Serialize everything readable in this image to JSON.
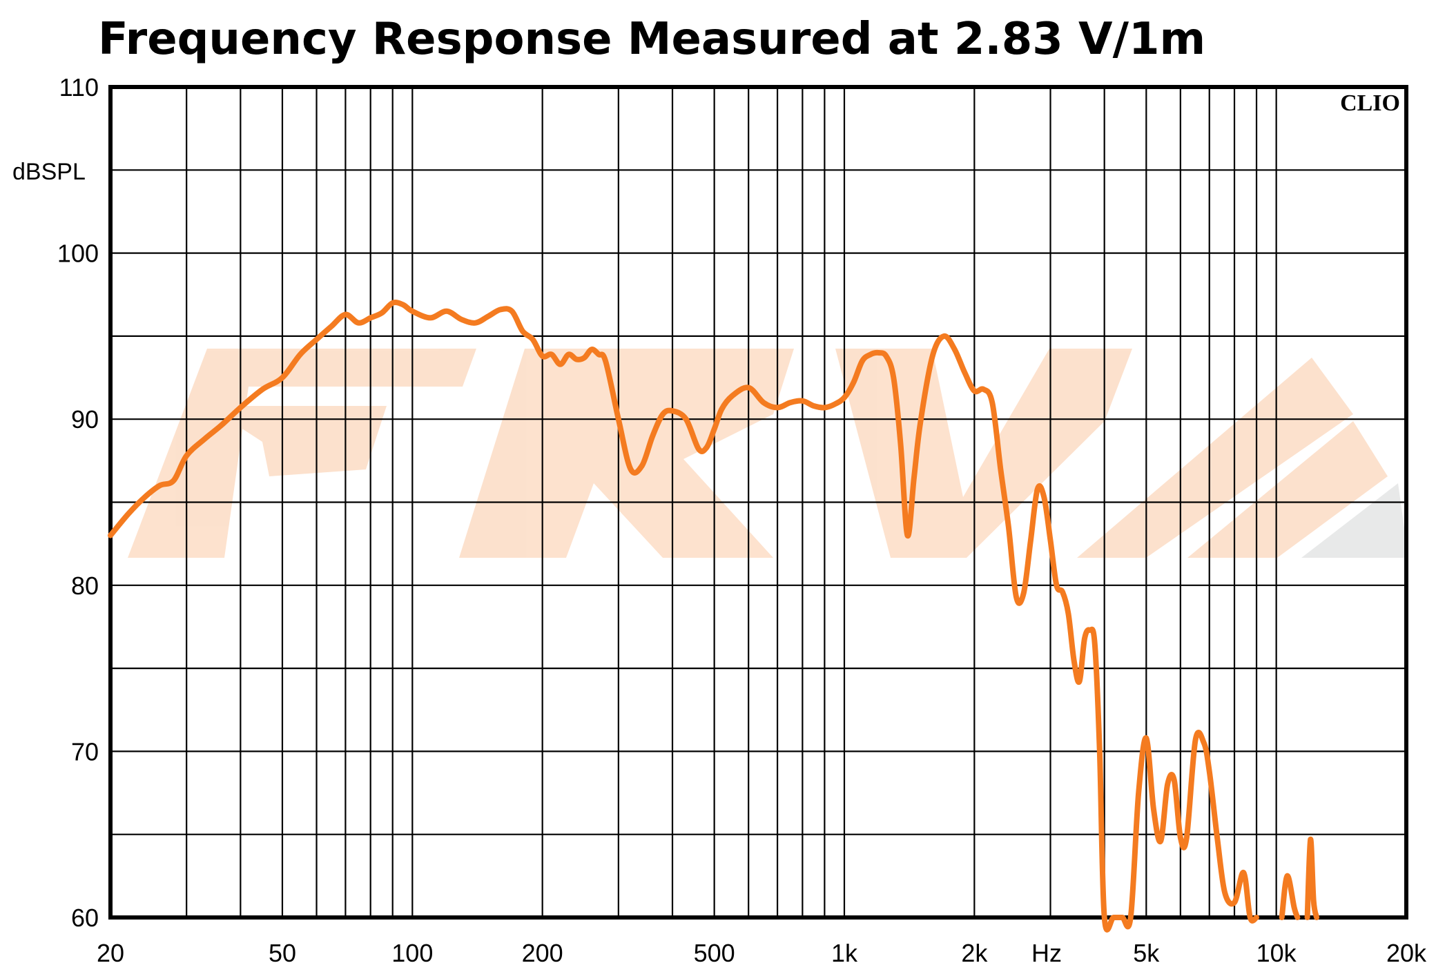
{
  "chart_data": {
    "type": "line",
    "title": "Frequency Response Measured at 2.83 V/1m",
    "xlabel": "Hz",
    "ylabel": "dBSPL",
    "brand": "CLIO",
    "x_scale": "log",
    "xlim": [
      20,
      20000
    ],
    "ylim": [
      60,
      110
    ],
    "grid": true,
    "curve_color": "#F47B20",
    "x_ticks": [
      {
        "value": 20,
        "label": "20"
      },
      {
        "value": 50,
        "label": "50"
      },
      {
        "value": 100,
        "label": "100"
      },
      {
        "value": 200,
        "label": "200"
      },
      {
        "value": 500,
        "label": "500"
      },
      {
        "value": 1000,
        "label": "1k"
      },
      {
        "value": 2000,
        "label": "2k"
      },
      {
        "value": 5000,
        "label": "5k"
      },
      {
        "value": 10000,
        "label": "10k"
      },
      {
        "value": 20000,
        "label": "20k"
      }
    ],
    "y_ticks": [
      {
        "value": 60,
        "label": "60"
      },
      {
        "value": 70,
        "label": "70"
      },
      {
        "value": 80,
        "label": "80"
      },
      {
        "value": 90,
        "label": "90"
      },
      {
        "value": 100,
        "label": "100"
      },
      {
        "value": 110,
        "label": "110"
      }
    ],
    "series": [
      {
        "x": [
          20,
          22,
          24,
          26,
          28,
          30,
          33,
          36,
          40,
          45,
          50,
          55,
          60,
          65,
          70,
          75,
          80,
          85,
          90,
          95,
          100,
          110,
          120,
          130,
          140,
          150,
          160,
          170,
          180,
          190,
          200,
          210,
          220,
          230,
          240,
          250,
          260,
          270,
          280,
          300,
          320,
          340,
          360,
          380,
          400,
          430,
          460,
          480,
          500,
          520,
          550,
          600,
          650,
          700,
          750,
          800,
          850,
          900,
          950,
          1000,
          1050,
          1100,
          1150,
          1200,
          1250,
          1300,
          1350,
          1400,
          1450,
          1500,
          1600,
          1700,
          1800,
          1900,
          2000,
          2100,
          2200,
          2300,
          2400,
          2500,
          2600,
          2700,
          2800,
          2900,
          3000,
          3100,
          3200,
          3300,
          3400,
          3500,
          3600,
          3700,
          3800,
          3900,
          4000,
          4200,
          4400,
          4600,
          4800,
          5000,
          5200,
          5400,
          5600,
          5800,
          6000,
          6200,
          6500,
          6800,
          7000,
          7300,
          7600,
          8000,
          8400,
          8700,
          9000
        ],
        "y": [
          83,
          84.3,
          85.3,
          86,
          86.3,
          87.8,
          88.8,
          89.6,
          90.7,
          91.8,
          92.5,
          93.9,
          94.8,
          95.6,
          96.3,
          95.8,
          96.1,
          96.4,
          97,
          96.9,
          96.5,
          96.1,
          96.5,
          96,
          95.8,
          96.2,
          96.6,
          96.5,
          95.3,
          94.8,
          93.8,
          93.9,
          93.3,
          93.9,
          93.6,
          93.7,
          94.2,
          93.9,
          93.5,
          90,
          87,
          87.2,
          89,
          90.3,
          90.5,
          90,
          88.2,
          88.3,
          89.4,
          90.6,
          91.4,
          91.9,
          91,
          90.7,
          91,
          91.1,
          90.8,
          90.7,
          90.9,
          91.3,
          92.2,
          93.5,
          93.9,
          94,
          93.8,
          92.5,
          88.5,
          83,
          86.5,
          89.8,
          93.8,
          95,
          94.2,
          92.8,
          91.7,
          91.8,
          91,
          87,
          83.5,
          79.3,
          79.5,
          82.7,
          85.8,
          85.3,
          82.7,
          80,
          79.6,
          78.3,
          75.5,
          74.2,
          76.8,
          77.3,
          76.5,
          70,
          60,
          60,
          60,
          60,
          67.5,
          70.8,
          66.5,
          64.6,
          68,
          68.3,
          64.8,
          64.8,
          70.7,
          70.5,
          68.8,
          64.8,
          61.5,
          60.9,
          62.7,
          60,
          60
        ]
      },
      {
        "x": [
          10300,
          10600,
          11000,
          11200
        ],
        "y": [
          60,
          62.5,
          60.6,
          60
        ]
      },
      {
        "x": [
          11800,
          12000,
          12200,
          12400
        ],
        "y": [
          60,
          64.7,
          61,
          60
        ]
      }
    ]
  }
}
